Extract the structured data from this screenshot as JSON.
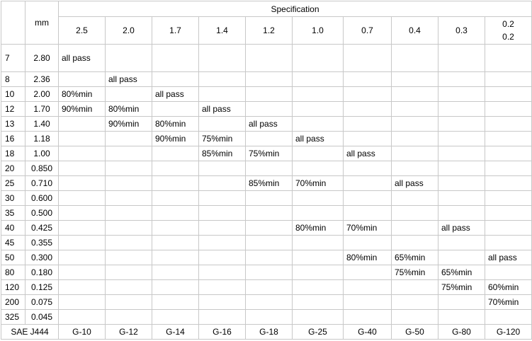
{
  "header": {
    "mm_label": "mm",
    "spec_title": "Specification",
    "sizes": [
      "2.5",
      "2.0",
      "1.7",
      "1.4",
      "1.2",
      "1.0",
      "0.7",
      "0.4",
      "0.3"
    ],
    "last_size_lines": [
      "0.2",
      "0.2"
    ]
  },
  "rows": [
    {
      "mesh": "7",
      "mm": "2.80",
      "cells": [
        "all pass",
        "",
        "",
        "",
        "",
        "",
        "",
        "",
        "",
        ""
      ]
    },
    {
      "mesh": "8",
      "mm": "2.36",
      "cells": [
        "",
        "all pass",
        "",
        "",
        "",
        "",
        "",
        "",
        "",
        ""
      ]
    },
    {
      "mesh": "10",
      "mm": "2.00",
      "cells": [
        "80%min",
        "",
        "all pass",
        "",
        "",
        "",
        "",
        "",
        "",
        ""
      ]
    },
    {
      "mesh": "12",
      "mm": "1.70",
      "cells": [
        "90%min",
        "80%min",
        "",
        "all pass",
        "",
        "",
        "",
        "",
        "",
        ""
      ]
    },
    {
      "mesh": "13",
      "mm": "1.40",
      "cells": [
        "",
        "90%min",
        "80%min",
        "",
        "all pass",
        "",
        "",
        "",
        "",
        ""
      ]
    },
    {
      "mesh": "16",
      "mm": "1.18",
      "cells": [
        "",
        "",
        "90%min",
        "75%min",
        "",
        "all pass",
        "",
        "",
        "",
        ""
      ]
    },
    {
      "mesh": "18",
      "mm": "1.00",
      "cells": [
        "",
        "",
        "",
        "85%min",
        "75%min",
        "",
        "all pass",
        "",
        "",
        ""
      ]
    },
    {
      "mesh": "20",
      "mm": "0.850",
      "cells": [
        "",
        "",
        "",
        "",
        "",
        "",
        "",
        "",
        "",
        ""
      ]
    },
    {
      "mesh": "25",
      "mm": "0.710",
      "cells": [
        "",
        "",
        "",
        "",
        "85%min",
        "70%min",
        "",
        "all pass",
        "",
        ""
      ]
    },
    {
      "mesh": "30",
      "mm": "0.600",
      "cells": [
        "",
        "",
        "",
        "",
        "",
        "",
        "",
        "",
        "",
        ""
      ]
    },
    {
      "mesh": "35",
      "mm": "0.500",
      "cells": [
        "",
        "",
        "",
        "",
        "",
        "",
        "",
        "",
        "",
        ""
      ]
    },
    {
      "mesh": "40",
      "mm": "0.425",
      "cells": [
        "",
        "",
        "",
        "",
        "",
        "80%min",
        "70%min",
        "",
        "all pass",
        ""
      ]
    },
    {
      "mesh": "45",
      "mm": "0.355",
      "cells": [
        "",
        "",
        "",
        "",
        "",
        "",
        "",
        "",
        "",
        ""
      ]
    },
    {
      "mesh": "50",
      "mm": "0.300",
      "cells": [
        "",
        "",
        "",
        "",
        "",
        "",
        "80%min",
        "65%min",
        "",
        "all pass"
      ]
    },
    {
      "mesh": "80",
      "mm": "0.180",
      "cells": [
        "",
        "",
        "",
        "",
        "",
        "",
        "",
        "75%min",
        "65%min",
        ""
      ]
    },
    {
      "mesh": "120",
      "mm": "0.125",
      "cells": [
        "",
        "",
        "",
        "",
        "",
        "",
        "",
        "",
        "75%min",
        "60%min"
      ]
    },
    {
      "mesh": "200",
      "mm": "0.075",
      "cells": [
        "",
        "",
        "",
        "",
        "",
        "",
        "",
        "",
        "",
        "70%min"
      ]
    },
    {
      "mesh": "325",
      "mm": "0.045",
      "cells": [
        "",
        "",
        "",
        "",
        "",
        "",
        "",
        "",
        "",
        ""
      ]
    }
  ],
  "footer": {
    "label": "SAE J444",
    "grades": [
      "G-10",
      "G-12",
      "G-14",
      "G-16",
      "G-18",
      "G-25",
      "G-40",
      "G-50",
      "G-80",
      "G-120"
    ]
  }
}
